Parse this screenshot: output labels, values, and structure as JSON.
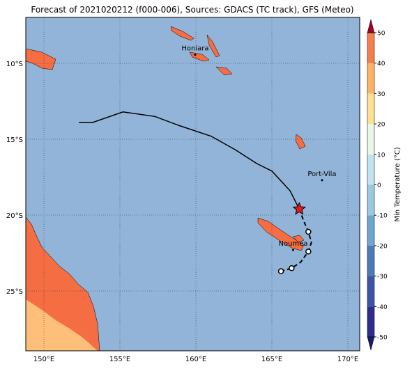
{
  "title": "Forecast of 2021020212 (f000-006), Sources: GDACS (TC track), GFS (Meteo)",
  "map": {
    "lon_ticks": [
      {
        "value": 150,
        "label": "150°E"
      },
      {
        "value": 155,
        "label": "155°E"
      },
      {
        "value": 160,
        "label": "160°E"
      },
      {
        "value": 165,
        "label": "165°E"
      },
      {
        "value": 170,
        "label": "170°E"
      }
    ],
    "lat_ticks": [
      {
        "value": -10,
        "label": "10°S"
      },
      {
        "value": -15,
        "label": "15°S"
      },
      {
        "value": -20,
        "label": "20°S"
      },
      {
        "value": -25,
        "label": "25°S"
      }
    ],
    "places": [
      {
        "name": "Honiara",
        "lon": 159.95,
        "lat": -9.43
      },
      {
        "name": "Port-Vila",
        "lon": 168.3,
        "lat": -17.7
      },
      {
        "name": "Noumea",
        "lon": 166.4,
        "lat": -22.3
      }
    ],
    "track_past": {
      "lon": [
        152.3,
        153.2,
        155.2,
        157.3,
        158.9,
        161.0,
        162.6,
        164.0,
        165.0,
        166.2,
        166.8
      ],
      "lat": [
        -13.9,
        -13.9,
        -13.2,
        -13.5,
        -14.1,
        -14.8,
        -15.7,
        -16.6,
        -17.1,
        -18.4,
        -19.6
      ]
    },
    "current": {
      "lon": 166.8,
      "lat": -19.6
    },
    "track_forecast": {
      "lon": [
        166.8,
        167.1,
        167.4,
        167.6,
        167.4,
        166.9,
        166.3,
        165.6
      ],
      "lat": [
        -19.6,
        -20.4,
        -21.1,
        -21.8,
        -22.4,
        -23.1,
        -23.5,
        -23.7
      ]
    }
  },
  "colorbar": {
    "label": "Min Temperature (°C)",
    "ticks": [
      -50,
      -40,
      -30,
      -20,
      -10,
      0,
      10,
      20,
      30,
      40,
      50
    ],
    "colors": [
      "#2c2d8f",
      "#3b55a4",
      "#4a7bb7",
      "#6ea6cd",
      "#98cae1",
      "#c2e4ef",
      "#eaf6e6",
      "#fee090",
      "#fdb366",
      "#f67e4b",
      "#dd3d2d",
      "#a50026",
      "#1a1a6e"
    ]
  }
}
